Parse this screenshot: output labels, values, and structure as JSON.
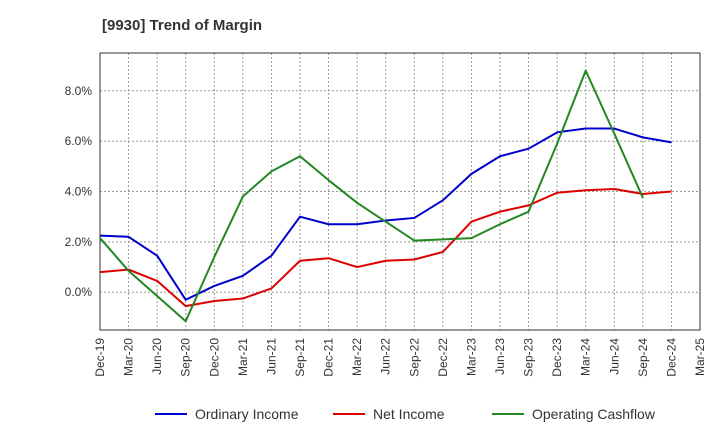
{
  "chart_data": {
    "type": "line",
    "title": "[9930]  Trend of Margin",
    "xlabel": "",
    "ylabel": "",
    "x": [
      "Dec-19",
      "Mar-20",
      "Jun-20",
      "Sep-20",
      "Dec-20",
      "Mar-21",
      "Jun-21",
      "Sep-21",
      "Dec-21",
      "Mar-22",
      "Jun-22",
      "Sep-22",
      "Dec-22",
      "Mar-23",
      "Jun-23",
      "Sep-23",
      "Dec-23",
      "Mar-24",
      "Jun-24",
      "Sep-24",
      "Dec-24",
      "Mar-25"
    ],
    "yticks": [
      "0.0%",
      "2.0%",
      "4.0%",
      "6.0%",
      "8.0%"
    ],
    "ylim": [
      -1.5,
      9.5
    ],
    "grid": true,
    "legend_position": "bottom",
    "series": [
      {
        "name": "Ordinary Income",
        "color": "#0000cc",
        "values": [
          2.25,
          2.2,
          1.45,
          -0.3,
          0.25,
          0.65,
          1.45,
          3.0,
          2.7,
          2.7,
          2.85,
          2.95,
          3.65,
          4.7,
          5.4,
          5.7,
          6.35,
          6.5,
          6.5,
          6.15,
          5.95,
          null
        ]
      },
      {
        "name": "Net Income",
        "color": "#dd0000",
        "values": [
          0.8,
          0.9,
          0.45,
          -0.55,
          -0.35,
          -0.25,
          0.15,
          1.25,
          1.35,
          1.0,
          1.25,
          1.3,
          1.6,
          2.8,
          3.2,
          3.45,
          3.95,
          4.05,
          4.1,
          3.9,
          4.0,
          null
        ]
      },
      {
        "name": "Operating Cashflow",
        "color": "#228822",
        "values": [
          2.15,
          0.85,
          -0.15,
          -1.15,
          1.4,
          3.8,
          4.8,
          5.4,
          4.45,
          3.55,
          2.8,
          2.05,
          2.1,
          2.15,
          2.7,
          3.2,
          5.9,
          8.8,
          6.3,
          3.75,
          null,
          null
        ]
      }
    ]
  }
}
